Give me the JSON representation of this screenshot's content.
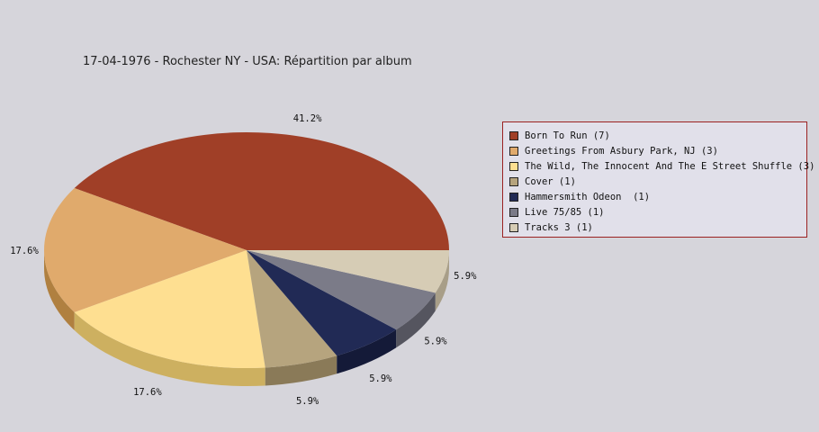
{
  "chart_data": {
    "type": "pie",
    "title": "17-04-1976 - Rochester NY - USA:  Répartition par album",
    "slices": [
      {
        "label": "Born To Run (7)",
        "value": 7,
        "percent_label": "41.2%",
        "color": "#a03f27",
        "side_color": "#7a1208"
      },
      {
        "label": "Greetings From Asbury Park, NJ (3)",
        "value": 3,
        "percent_label": "17.6%",
        "color": "#e0aa6c",
        "side_color": "#b08040"
      },
      {
        "label": "The Wild, The Innocent And The E Street Shuffle (3)",
        "value": 3,
        "percent_label": "17.6%",
        "color": "#fedf91",
        "side_color": "#cdb060"
      },
      {
        "label": "Cover (1)",
        "value": 1,
        "percent_label": "5.9%",
        "color": "#b6a47e",
        "side_color": "#8a7a58"
      },
      {
        "label": "Hammersmith Odeon  (1)",
        "value": 1,
        "percent_label": "5.9%",
        "color": "#212a55",
        "side_color": "#141a38"
      },
      {
        "label": "Live 75/85 (1)",
        "value": 1,
        "percent_label": "5.9%",
        "color": "#7b7b88",
        "side_color": "#55555f"
      },
      {
        "label": "Tracks 3 (1)",
        "value": 1,
        "percent_label": "5.9%",
        "color": "#d6ccb5",
        "side_color": "#a89e88"
      }
    ],
    "legend_position": "right"
  }
}
